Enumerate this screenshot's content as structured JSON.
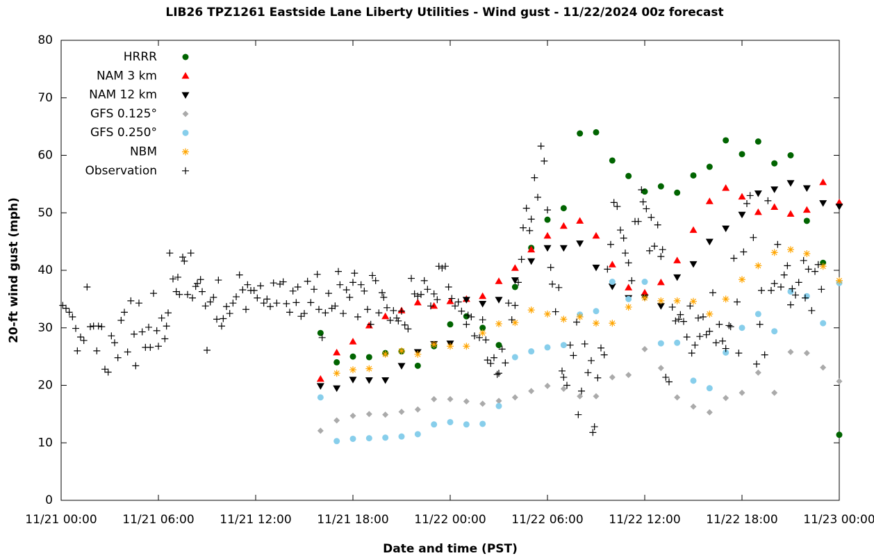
{
  "chart_data": {
    "type": "scatter",
    "title": "LIB26 TPZ1261 Eastside Lane Liberty Utilities - Wind gust - 11/22/2024 00z forecast",
    "xlabel": "Date and time (PST)",
    "ylabel": "20-ft wind gust (mph)",
    "xlim": [
      0,
      48
    ],
    "ylim": [
      0,
      80
    ],
    "xticks": [
      {
        "value": 0,
        "label": "11/21 00:00"
      },
      {
        "value": 6,
        "label": "11/21 06:00"
      },
      {
        "value": 12,
        "label": "11/21 12:00"
      },
      {
        "value": 18,
        "label": "11/21 18:00"
      },
      {
        "value": 24,
        "label": "11/22 00:00"
      },
      {
        "value": 30,
        "label": "11/22 06:00"
      },
      {
        "value": 36,
        "label": "11/22 12:00"
      },
      {
        "value": 42,
        "label": "11/22 18:00"
      },
      {
        "value": 48,
        "label": "11/23 00:00"
      }
    ],
    "yticks": [
      0,
      10,
      20,
      30,
      40,
      50,
      60,
      70,
      80
    ],
    "legend": "top-left",
    "x": [
      16,
      17,
      18,
      19,
      20,
      21,
      22,
      23,
      24,
      25,
      26,
      27,
      28,
      29,
      30,
      31,
      32,
      33,
      34,
      35,
      36,
      37,
      38,
      39,
      40,
      41,
      42,
      43,
      44,
      45,
      46,
      47,
      48
    ],
    "series": [
      {
        "name": "HRRR",
        "color": "#006400",
        "marker": "circle",
        "values": [
          29.1,
          24.0,
          25.0,
          24.9,
          25.6,
          25.9,
          23.4,
          26.8,
          30.6,
          32.0,
          30.0,
          27.0,
          37.1,
          43.9,
          48.8,
          50.8,
          63.8,
          64.0,
          59.1,
          56.4,
          53.7,
          54.6,
          53.5,
          56.5,
          58.0,
          62.6,
          60.2,
          62.4,
          58.6,
          60.0,
          48.6,
          41.3,
          11.4
        ]
      },
      {
        "name": "NAM 3 km",
        "color": "#ff0000",
        "marker": "triangle-up",
        "values": [
          21.1,
          25.7,
          27.6,
          30.4,
          32.0,
          33.0,
          34.4,
          33.8,
          34.6,
          35.0,
          35.5,
          38.1,
          40.4,
          43.6,
          46.0,
          47.7,
          48.6,
          46.0,
          41.0,
          37.0,
          36.1,
          37.9,
          41.7,
          47.0,
          52.0,
          54.3,
          52.8,
          50.1,
          51.0,
          49.8,
          50.5,
          55.3,
          51.8
        ]
      },
      {
        "name": "NAM 12 km",
        "color": "#000000",
        "marker": "triangle-down",
        "values": [
          19.9,
          19.5,
          21.0,
          20.9,
          20.9,
          23.4,
          25.8,
          27.2,
          27.3,
          34.9,
          34.2,
          34.9,
          38.3,
          41.6,
          43.9,
          43.9,
          44.7,
          40.5,
          37.2,
          35.2,
          35.3,
          33.8,
          38.8,
          41.1,
          45.0,
          47.3,
          49.7,
          53.4,
          54.1,
          55.2,
          54.3,
          51.7,
          51.1
        ]
      },
      {
        "name": "GFS 0.125°",
        "color": "#aaaaaa",
        "marker": "diamond",
        "values": [
          12.1,
          13.9,
          14.7,
          15.0,
          14.9,
          15.4,
          15.8,
          17.6,
          17.6,
          17.2,
          16.8,
          17.3,
          17.9,
          19.0,
          19.9,
          19.4,
          18.1,
          18.1,
          21.4,
          21.8,
          26.3,
          23.0,
          17.9,
          16.3,
          15.3,
          17.8,
          18.7,
          22.2,
          18.7,
          25.8,
          25.6,
          23.1,
          20.7
        ]
      },
      {
        "name": "GFS 0.250°",
        "color": "#87ceeb",
        "marker": "circle",
        "values": [
          17.9,
          10.3,
          10.7,
          10.8,
          10.9,
          11.1,
          11.5,
          13.2,
          13.6,
          13.2,
          13.3,
          16.4,
          24.9,
          25.9,
          26.6,
          27.0,
          32.3,
          32.9,
          38.0,
          35.0,
          38.0,
          27.3,
          27.4,
          20.8,
          19.5,
          25.7,
          30.0,
          32.4,
          29.4,
          36.3,
          35.5,
          30.8,
          37.8
        ]
      },
      {
        "name": "NBM",
        "color": "#ffa500",
        "marker": "asterisk",
        "values": [
          null,
          22.1,
          22.7,
          22.9,
          25.4,
          26.0,
          25.4,
          27.1,
          26.8,
          26.8,
          29.1,
          30.7,
          30.9,
          33.1,
          32.4,
          31.5,
          31.9,
          30.8,
          30.8,
          33.6,
          35.2,
          34.7,
          34.7,
          34.6,
          32.4,
          35.0,
          38.4,
          40.8,
          43.1,
          43.6,
          42.9,
          40.7,
          38.2
        ]
      },
      {
        "name": "Observation",
        "color": "#000000",
        "marker": "plus",
        "x": [
          0.1,
          0.3,
          0.5,
          0.7,
          0.9,
          1.0,
          1.2,
          1.4,
          1.6,
          1.8,
          2.0,
          2.2,
          2.3,
          2.5,
          2.7,
          2.9,
          3.1,
          3.3,
          3.5,
          3.7,
          3.9,
          4.1,
          4.3,
          4.5,
          4.6,
          4.8,
          5.0,
          5.2,
          5.4,
          5.5,
          5.7,
          5.9,
          6.0,
          6.2,
          6.4,
          6.5,
          6.6,
          6.7,
          6.9,
          7.1,
          7.2,
          7.3,
          7.5,
          7.6,
          7.8,
          8.0,
          8.1,
          8.3,
          8.4,
          8.6,
          8.7,
          8.9,
          9.0,
          9.2,
          9.4,
          9.6,
          9.7,
          9.9,
          10.0,
          10.2,
          10.4,
          10.6,
          10.8,
          11.0,
          11.2,
          11.4,
          11.5,
          11.7,
          11.9,
          12.1,
          12.3,
          12.5,
          12.7,
          12.9,
          13.1,
          13.3,
          13.5,
          13.7,
          13.9,
          14.1,
          14.3,
          14.5,
          14.6,
          14.8,
          15.0,
          15.2,
          15.4,
          15.6,
          15.8,
          15.9,
          16.1,
          16.3,
          16.5,
          16.7,
          16.9,
          17.1,
          17.2,
          17.4,
          17.6,
          17.8,
          18.0,
          18.1,
          18.3,
          18.5,
          18.7,
          18.9,
          19.1,
          19.2,
          19.4,
          19.6,
          19.8,
          19.9,
          20.1,
          20.3,
          20.5,
          20.7,
          20.8,
          21.0,
          21.2,
          21.4,
          21.6,
          21.8,
          22.0,
          22.2,
          22.4,
          22.6,
          22.8,
          23.0,
          23.2,
          23.3,
          23.5,
          23.7,
          23.9,
          24.1,
          24.3,
          24.5,
          24.7,
          25.0,
          25.1,
          25.3,
          25.5,
          25.8,
          26.0,
          26.2,
          26.3,
          26.5,
          26.7,
          26.9,
          27.0,
          27.2,
          27.4,
          27.6,
          27.8,
          28.0,
          28.2,
          28.4,
          28.5,
          28.7,
          28.9,
          29.0,
          29.2,
          29.4,
          29.6,
          29.8,
          30.0,
          30.2,
          30.3,
          30.5,
          30.7,
          30.9,
          31.0,
          31.2,
          31.4,
          31.6,
          31.8,
          31.9,
          32.1,
          32.3,
          32.5,
          32.7,
          32.8,
          32.9,
          33.1,
          33.3,
          33.5,
          33.7,
          33.9,
          34.1,
          34.3,
          34.5,
          34.7,
          34.8,
          35.0,
          35.2,
          35.4,
          35.6,
          35.8,
          35.9,
          36.1,
          36.3,
          36.4,
          36.6,
          36.8,
          37.0,
          37.1,
          37.3,
          37.5,
          37.7,
          37.9,
          38.1,
          38.2,
          38.4,
          38.6,
          38.8,
          38.9,
          39.1,
          39.3,
          39.4,
          39.6,
          39.8,
          40.0,
          40.2,
          40.4,
          40.6,
          40.8,
          41.0,
          41.2,
          41.3,
          41.5,
          41.7,
          41.8,
          42.1,
          42.3,
          42.5,
          42.7,
          42.9,
          43.1,
          43.2,
          43.4,
          43.6,
          43.8,
          44.0,
          44.2,
          44.4,
          44.6,
          44.8,
          45.0,
          45.1,
          45.3,
          45.5,
          45.8,
          45.9,
          46.1,
          46.3,
          46.5,
          46.7,
          46.9
        ],
        "values": [
          33.9,
          33.4,
          32.7,
          31.9,
          29.9,
          26.0,
          28.4,
          27.8,
          37.1,
          30.2,
          30.3,
          26.0,
          30.3,
          30.2,
          22.8,
          22.3,
          28.6,
          27.4,
          24.8,
          31.3,
          32.7,
          25.8,
          34.7,
          28.9,
          23.4,
          34.3,
          29.3,
          26.6,
          30.1,
          26.6,
          36.0,
          29.5,
          26.8,
          31.7,
          28.1,
          30.3,
          32.6,
          43.0,
          38.5,
          36.3,
          38.8,
          35.8,
          42.3,
          41.6,
          35.8,
          43.0,
          35.2,
          37.2,
          37.7,
          38.4,
          36.3,
          33.8,
          26.1,
          34.5,
          35.3,
          31.5,
          38.3,
          30.3,
          31.6,
          33.7,
          32.5,
          34.3,
          35.4,
          39.2,
          36.6,
          33.2,
          37.5,
          36.5,
          36.5,
          35.2,
          37.3,
          34.3,
          35.0,
          33.7,
          37.8,
          34.3,
          37.6,
          38.0,
          34.2,
          32.7,
          36.4,
          34.4,
          37.1,
          32.0,
          32.5,
          38.1,
          34.4,
          36.7,
          39.3,
          33.2,
          28.3,
          32.6,
          36.0,
          33.4,
          33.8,
          39.8,
          37.5,
          32.5,
          36.6,
          35.3,
          37.9,
          39.5,
          31.9,
          37.5,
          36.4,
          33.2,
          30.6,
          39.1,
          38.2,
          32.6,
          36.1,
          35.3,
          33.5,
          31.3,
          33.0,
          31.7,
          31.2,
          32.9,
          30.5,
          29.8,
          38.6,
          35.9,
          35.5,
          35.8,
          38.2,
          36.7,
          33.8,
          35.9,
          34.9,
          40.7,
          40.4,
          40.7,
          37.1,
          35.1,
          33.8,
          34.5,
          32.9,
          30.6,
          32.2,
          31.9,
          28.6,
          28.3,
          31.4,
          27.9,
          24.4,
          23.8,
          24.8,
          21.9,
          22.1,
          26.3,
          23.9,
          34.3,
          31.4,
          33.9,
          37.9,
          41.9,
          47.4,
          50.8,
          46.9,
          48.9,
          56.1,
          52.7,
          61.6,
          59.0,
          50.5,
          40.5,
          37.6,
          32.8,
          37.0,
          22.5,
          21.4,
          20.0,
          27.0,
          25.2,
          31.0,
          14.9,
          19.0,
          27.2,
          22.2,
          24.3,
          11.8,
          12.8,
          21.3,
          26.5,
          25.3,
          40.2,
          44.5,
          51.8,
          51.1,
          47.0,
          45.6,
          43.0,
          41.3,
          38.2,
          48.5,
          48.5,
          54.0,
          51.9,
          50.7,
          43.4,
          49.2,
          44.2,
          47.9,
          42.4,
          43.6,
          21.4,
          20.6,
          33.6,
          31.2,
          31.5,
          32.3,
          31.1,
          28.4,
          33.8,
          25.6,
          27.0,
          31.7,
          28.5,
          31.9,
          28.8,
          29.4,
          36.1,
          27.4,
          30.6,
          27.7,
          26.4,
          30.4,
          30.2,
          42.1,
          34.5,
          25.6,
          43.2,
          51.6,
          53.0,
          45.7,
          23.7,
          30.6,
          36.5,
          25.3,
          52.1,
          36.5,
          37.7,
          44.5,
          37.1,
          39.2,
          40.8,
          34.0,
          36.8,
          35.7,
          37.9,
          41.7,
          35.2,
          40.2,
          33.0,
          39.8,
          41.0,
          36.7
        ]
      }
    ]
  }
}
